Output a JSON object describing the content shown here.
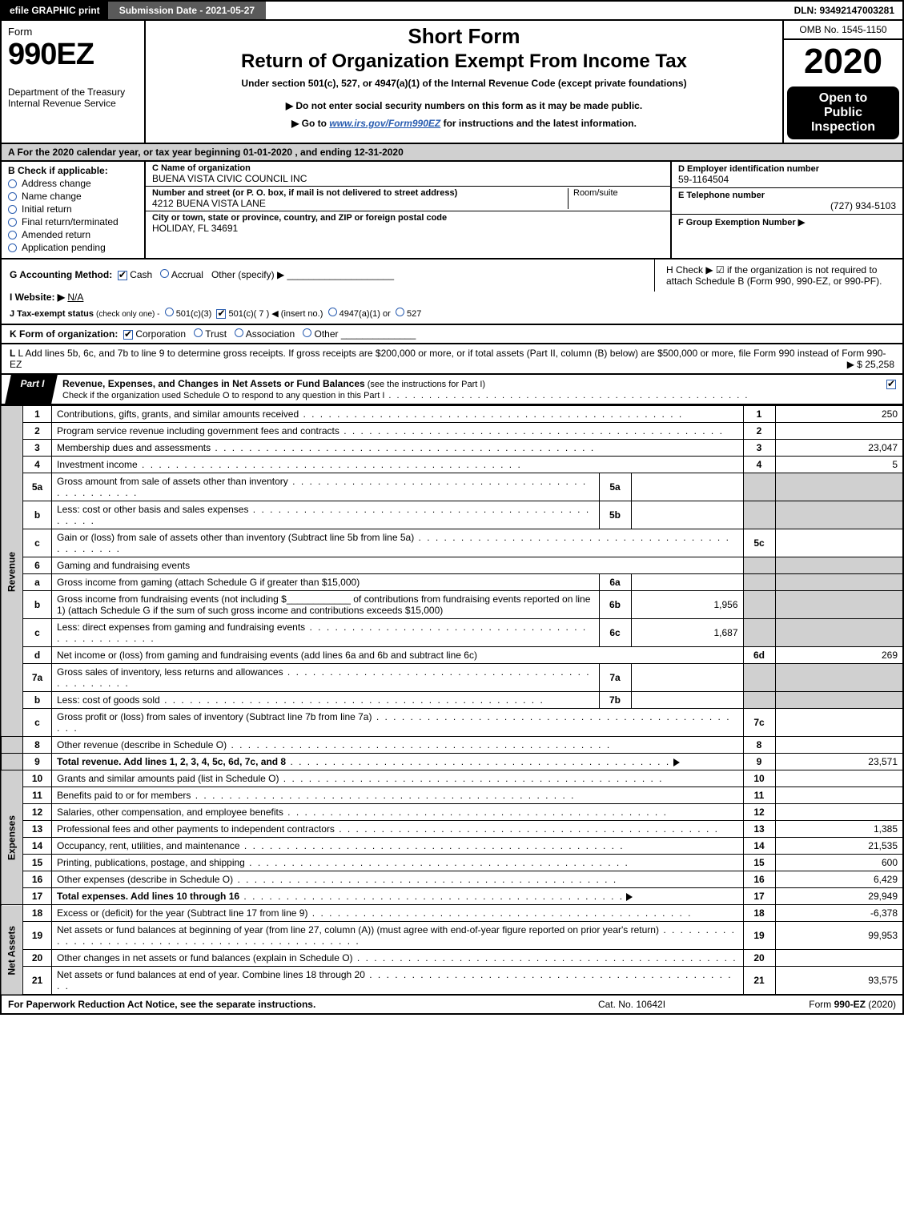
{
  "topbar": {
    "efile": "efile GRAPHIC print",
    "subdate_label": "Submission Date - 2021-05-27",
    "dln": "DLN: 93492147003281"
  },
  "header": {
    "form_word": "Form",
    "form_num": "990EZ",
    "dept1": "Department of the Treasury",
    "dept2": "Internal Revenue Service",
    "short_form": "Short Form",
    "return_title": "Return of Organization Exempt From Income Tax",
    "under": "Under section 501(c), 527, or 4947(a)(1) of the Internal Revenue Code (except private foundations)",
    "donot": "▶ Do not enter social security numbers on this form as it may be made public.",
    "goto_pre": "▶ Go to ",
    "goto_link": "www.irs.gov/Form990EZ",
    "goto_post": " for instructions and the latest information.",
    "omb": "OMB No. 1545-1150",
    "year": "2020",
    "open1": "Open to",
    "open2": "Public",
    "open3": "Inspection"
  },
  "row_a": "A  For the 2020 calendar year, or tax year beginning 01-01-2020 , and ending 12-31-2020",
  "col_b": {
    "label": "B  Check if applicable:",
    "addr": "Address change",
    "name": "Name change",
    "init": "Initial return",
    "final": "Final return/terminated",
    "amend": "Amended return",
    "app": "Application pending"
  },
  "col_c": {
    "name_lab": "C Name of organization",
    "name": "BUENA VISTA CIVIC COUNCIL INC",
    "street_lab": "Number and street (or P. O. box, if mail is not delivered to street address)",
    "room_lab": "Room/suite",
    "street": "4212 BUENA VISTA LANE",
    "city_lab": "City or town, state or province, country, and ZIP or foreign postal code",
    "city": "HOLIDAY, FL  34691"
  },
  "col_def": {
    "d_lab": "D Employer identification number",
    "d_val": "59-1164504",
    "e_lab": "E Telephone number",
    "e_val": "(727) 934-5103",
    "f_lab": "F Group Exemption Number  ▶"
  },
  "row_g": {
    "g_lab": "G Accounting Method:",
    "cash": "Cash",
    "accrual": "Accrual",
    "other": "Other (specify) ▶",
    "h_text": "H  Check ▶ ☑ if the organization is not required to attach Schedule B (Form 990, 990-EZ, or 990-PF).",
    "i_lab": "I Website: ▶",
    "i_val": "N/A",
    "j_lab": "J Tax-exempt status",
    "j_small": "(check only one) -",
    "j_5013": "501(c)(3)",
    "j_501c": "501(c)( 7 ) ◀ (insert no.)",
    "j_4947": "4947(a)(1) or",
    "j_527": "527"
  },
  "row_k": {
    "lab": "K Form of organization:",
    "corp": "Corporation",
    "trust": "Trust",
    "assoc": "Association",
    "other": "Other"
  },
  "row_l": {
    "text": "L Add lines 5b, 6c, and 7b to line 9 to determine gross receipts. If gross receipts are $200,000 or more, or if total assets (Part II, column (B) below) are $500,000 or more, file Form 990 instead of Form 990-EZ",
    "val": "▶ $ 25,258"
  },
  "part1": {
    "tab": "Part I",
    "title": "Revenue, Expenses, and Changes in Net Assets or Fund Balances",
    "sub": " (see the instructions for Part I)",
    "check_line": "Check if the organization used Schedule O to respond to any question in this Part I"
  },
  "revenue_label": "Revenue",
  "expenses_label": "Expenses",
  "netassets_label": "Net Assets",
  "lines": {
    "1": {
      "n": "1",
      "d": "Contributions, gifts, grants, and similar amounts received",
      "num": "1",
      "v": "250"
    },
    "2": {
      "n": "2",
      "d": "Program service revenue including government fees and contracts",
      "num": "2",
      "v": ""
    },
    "3": {
      "n": "3",
      "d": "Membership dues and assessments",
      "num": "3",
      "v": "23,047"
    },
    "4": {
      "n": "4",
      "d": "Investment income",
      "num": "4",
      "v": "5"
    },
    "5a": {
      "n": "5a",
      "d": "Gross amount from sale of assets other than inventory",
      "mn": "5a",
      "mv": ""
    },
    "5b": {
      "n": "b",
      "d": "Less: cost or other basis and sales expenses",
      "mn": "5b",
      "mv": ""
    },
    "5c": {
      "n": "c",
      "d": "Gain or (loss) from sale of assets other than inventory (Subtract line 5b from line 5a)",
      "num": "5c",
      "v": ""
    },
    "6": {
      "n": "6",
      "d": "Gaming and fundraising events"
    },
    "6a": {
      "n": "a",
      "d": "Gross income from gaming (attach Schedule G if greater than $15,000)",
      "mn": "6a",
      "mv": ""
    },
    "6b": {
      "n": "b",
      "d1": "Gross income from fundraising events (not including $",
      "d2": " of contributions from fundraising events reported on line 1) (attach Schedule G if the sum of such gross income and contributions exceeds $15,000)",
      "mn": "6b",
      "mv": "1,956"
    },
    "6c": {
      "n": "c",
      "d": "Less: direct expenses from gaming and fundraising events",
      "mn": "6c",
      "mv": "1,687"
    },
    "6d": {
      "n": "d",
      "d": "Net income or (loss) from gaming and fundraising events (add lines 6a and 6b and subtract line 6c)",
      "num": "6d",
      "v": "269"
    },
    "7a": {
      "n": "7a",
      "d": "Gross sales of inventory, less returns and allowances",
      "mn": "7a",
      "mv": ""
    },
    "7b": {
      "n": "b",
      "d": "Less: cost of goods sold",
      "mn": "7b",
      "mv": ""
    },
    "7c": {
      "n": "c",
      "d": "Gross profit or (loss) from sales of inventory (Subtract line 7b from line 7a)",
      "num": "7c",
      "v": ""
    },
    "8": {
      "n": "8",
      "d": "Other revenue (describe in Schedule O)",
      "num": "8",
      "v": ""
    },
    "9": {
      "n": "9",
      "d": "Total revenue. Add lines 1, 2, 3, 4, 5c, 6d, 7c, and 8",
      "num": "9",
      "v": "23,571",
      "bold": true,
      "arrow": true
    },
    "10": {
      "n": "10",
      "d": "Grants and similar amounts paid (list in Schedule O)",
      "num": "10",
      "v": ""
    },
    "11": {
      "n": "11",
      "d": "Benefits paid to or for members",
      "num": "11",
      "v": ""
    },
    "12": {
      "n": "12",
      "d": "Salaries, other compensation, and employee benefits",
      "num": "12",
      "v": ""
    },
    "13": {
      "n": "13",
      "d": "Professional fees and other payments to independent contractors",
      "num": "13",
      "v": "1,385"
    },
    "14": {
      "n": "14",
      "d": "Occupancy, rent, utilities, and maintenance",
      "num": "14",
      "v": "21,535"
    },
    "15": {
      "n": "15",
      "d": "Printing, publications, postage, and shipping",
      "num": "15",
      "v": "600"
    },
    "16": {
      "n": "16",
      "d": "Other expenses (describe in Schedule O)",
      "num": "16",
      "v": "6,429"
    },
    "17": {
      "n": "17",
      "d": "Total expenses. Add lines 10 through 16",
      "num": "17",
      "v": "29,949",
      "bold": true,
      "arrow": true
    },
    "18": {
      "n": "18",
      "d": "Excess or (deficit) for the year (Subtract line 17 from line 9)",
      "num": "18",
      "v": "-6,378"
    },
    "19": {
      "n": "19",
      "d": "Net assets or fund balances at beginning of year (from line 27, column (A)) (must agree with end-of-year figure reported on prior year's return)",
      "num": "19",
      "v": "99,953"
    },
    "20": {
      "n": "20",
      "d": "Other changes in net assets or fund balances (explain in Schedule O)",
      "num": "20",
      "v": ""
    },
    "21": {
      "n": "21",
      "d": "Net assets or fund balances at end of year. Combine lines 18 through 20",
      "num": "21",
      "v": "93,575"
    }
  },
  "footer": {
    "left": "For Paperwork Reduction Act Notice, see the separate instructions.",
    "mid": "Cat. No. 10642I",
    "right": "Form 990-EZ (2020)"
  },
  "colors": {
    "shade": "#d0d0d0",
    "link": "#2a5db0",
    "border": "#000000"
  }
}
